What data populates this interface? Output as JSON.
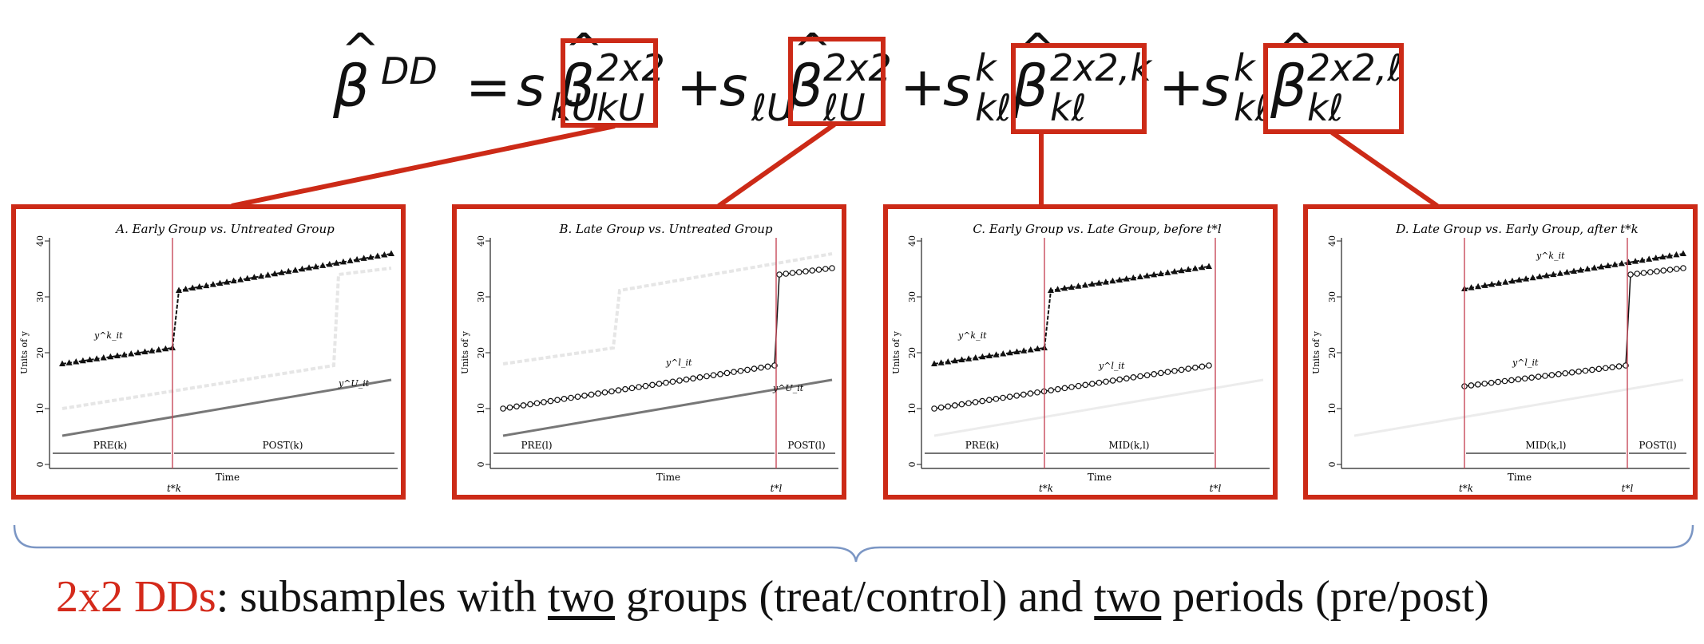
{
  "formula": {
    "lhs_symbol": "β",
    "lhs_sup": "DD",
    "equals": "=",
    "plus": "+",
    "weight_s": "s",
    "weights": [
      {
        "sub": "kU",
        "sup": ""
      },
      {
        "sub": "ℓU",
        "sup": ""
      },
      {
        "sub": "kℓ",
        "sup": "k"
      },
      {
        "sub": "kℓ",
        "sup": "k"
      }
    ],
    "terms": [
      {
        "sup": "2x2",
        "sub": "kU"
      },
      {
        "sup": "2x2",
        "sub": "ℓU"
      },
      {
        "sup": "2x2,k",
        "sub": "kℓ"
      },
      {
        "sup": "2x2,ℓ",
        "sub": "kℓ"
      }
    ],
    "hat": "^"
  },
  "panels": [
    {
      "title": "A. Early Group vs. Untreated Group",
      "ylabel": "Units of y",
      "xlabel": "Time",
      "yticks": [
        "0",
        "10",
        "20",
        "30",
        "40"
      ],
      "periods": [
        "PRE(k)",
        "POST(k)"
      ],
      "tmarks": [
        "t*k"
      ],
      "series_labels": [
        "y^k_it",
        "y^U_it"
      ]
    },
    {
      "title": "B. Late Group vs. Untreated Group",
      "ylabel": "Units of y",
      "xlabel": "Time",
      "yticks": [
        "0",
        "10",
        "20",
        "30",
        "40"
      ],
      "periods": [
        "PRE(l)",
        "POST(l)"
      ],
      "tmarks": [
        "t*l"
      ],
      "series_labels": [
        "y^l_it",
        "y^U_it"
      ]
    },
    {
      "title": "C. Early Group vs. Late Group, before t*l",
      "ylabel": "Units of y",
      "xlabel": "Time",
      "yticks": [
        "0",
        "10",
        "20",
        "30",
        "40"
      ],
      "periods": [
        "PRE(k)",
        "MID(k,l)"
      ],
      "tmarks": [
        "t*k",
        "t*l"
      ],
      "series_labels": [
        "y^k_it",
        "y^l_it"
      ]
    },
    {
      "title": "D. Late Group vs. Early Group, after t*k",
      "ylabel": "Units of y",
      "xlabel": "Time",
      "yticks": [
        "0",
        "10",
        "20",
        "30",
        "40"
      ],
      "periods": [
        "MID(k,l)",
        "POST(l)"
      ],
      "tmarks": [
        "t*k",
        "t*l"
      ],
      "series_labels": [
        "y^k_it",
        "y^l_it"
      ]
    }
  ],
  "caption": {
    "red": "2x2 DDs",
    "p1": ": subsamples with ",
    "u1": "two",
    "p2": " groups (treat/control) and ",
    "u2": "two",
    "p3": " periods (pre/post)"
  },
  "colors": {
    "accent_red": "#cc2a17",
    "caption_red": "#d42a1b",
    "brace": "#7b96c4",
    "vline": "#c84a5a",
    "untreated": "#777777",
    "faint": "#e6e6e6"
  }
}
